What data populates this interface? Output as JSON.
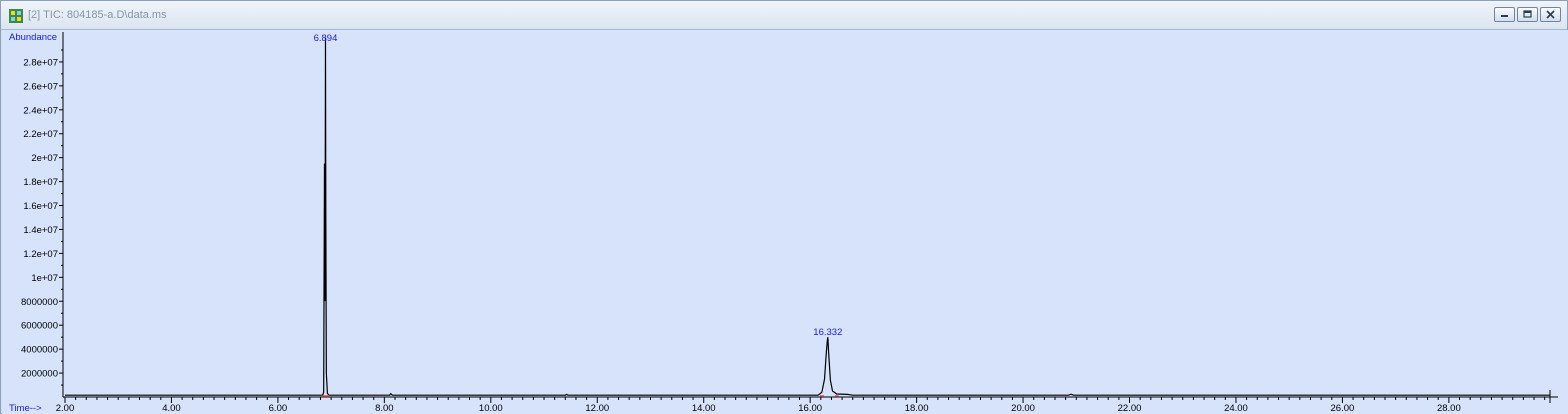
{
  "window": {
    "title": "[2] TIC: 804185-a.D\\data.ms"
  },
  "colors": {
    "plot_background": "#d6e3fb",
    "trace": "#000000",
    "label": "#1a1ae0",
    "baseline_marker": "#ff4040"
  },
  "chart_data": {
    "type": "line",
    "title": "",
    "ylabel": "Abundance",
    "xlabel": "Time-->",
    "xlim": [
      2.0,
      29.9
    ],
    "ylim": [
      0,
      30000000
    ],
    "x_ticks": [
      2.0,
      4.0,
      6.0,
      8.0,
      10.0,
      12.0,
      14.0,
      16.0,
      18.0,
      20.0,
      22.0,
      24.0,
      26.0,
      28.0
    ],
    "x_tick_labels": [
      "2.00",
      "4.00",
      "6.00",
      "8.00",
      "10.00",
      "12.00",
      "14.00",
      "16.00",
      "18.00",
      "20.00",
      "22.00",
      "24.00",
      "26.00",
      "28.00"
    ],
    "y_ticks": [
      2000000,
      4000000,
      6000000,
      8000000,
      10000000,
      12000000,
      14000000,
      16000000,
      18000000,
      20000000,
      22000000,
      24000000,
      26000000,
      28000000
    ],
    "y_tick_labels": [
      "2000000",
      "4000000",
      "6000000",
      "8000000",
      "1e+07",
      "1.2e+07",
      "1.4e+07",
      "1.6e+07",
      "1.8e+07",
      "2e+07",
      "2.2e+07",
      "2.4e+07",
      "2.6e+07",
      "2.8e+07"
    ],
    "grid": false,
    "series": [
      {
        "x": [
          2.0,
          6.84,
          6.86,
          6.875,
          6.885,
          6.894,
          6.9,
          6.91,
          6.93,
          6.96,
          8.1,
          8.12,
          8.15,
          11.4,
          11.42,
          11.45,
          16.15,
          16.22,
          16.27,
          16.3,
          16.32,
          16.332,
          16.35,
          16.38,
          16.42,
          16.5,
          16.7,
          16.8,
          20.85,
          20.9,
          20.95,
          29.9
        ],
        "y": [
          150000,
          150000,
          400000,
          19500000,
          8000000,
          30000000,
          15800000,
          2000000,
          300000,
          150000,
          150000,
          280000,
          150000,
          150000,
          220000,
          150000,
          150000,
          400000,
          1500000,
          3500000,
          4600000,
          5000000,
          3500000,
          1400000,
          500000,
          250000,
          220000,
          150000,
          150000,
          230000,
          150000,
          150000
        ]
      }
    ],
    "annotations": [
      {
        "text": "6.894",
        "x": 6.894,
        "y": 30000000
      },
      {
        "text": "16.332",
        "x": 16.332,
        "y": 5000000
      }
    ],
    "baseline_markers": [
      6.86,
      6.93,
      16.22,
      16.5
    ]
  }
}
